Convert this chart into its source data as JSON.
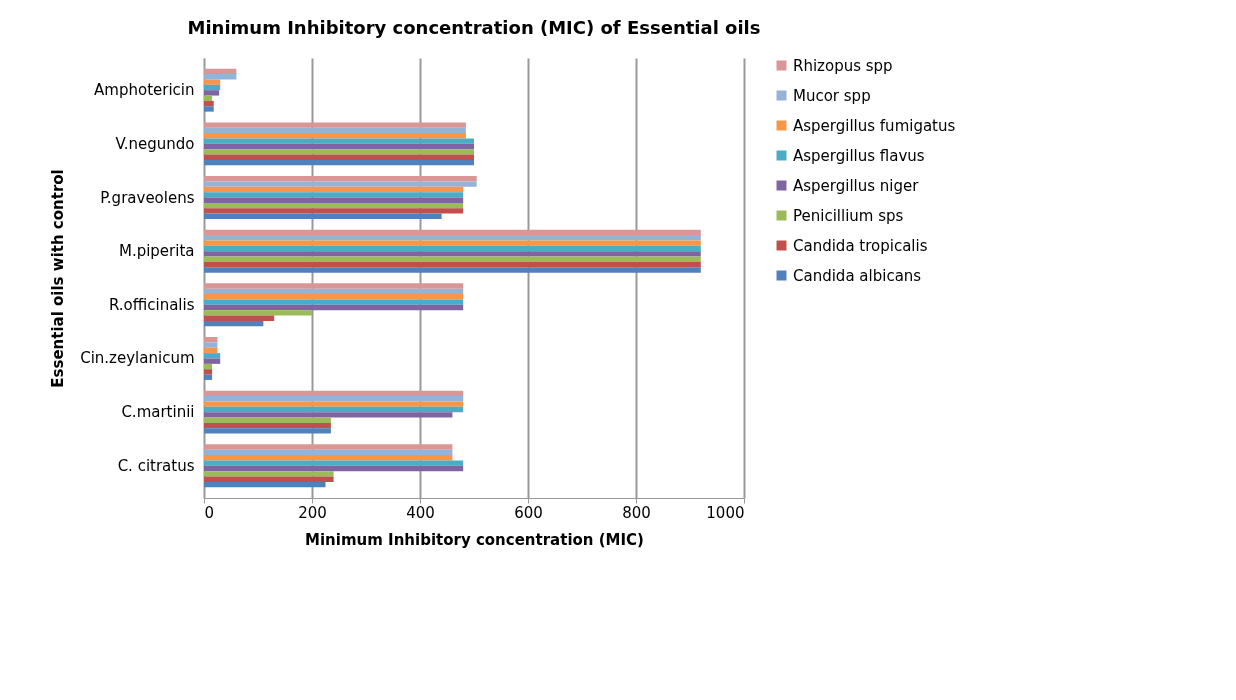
{
  "chart_data": {
    "type": "bar",
    "orientation": "horizontal",
    "title": "Minimum Inhibitory concentration (MIC) of Essential oils",
    "xlabel": "Minimum Inhibitory concentration (MIC)",
    "ylabel": "Essential oils with control",
    "categories": [
      "Amphotericin",
      "V.negundo",
      "P.graveolens",
      "M.piperita",
      "R.officinalis",
      "Cin.zeylanicum",
      "C.martinii",
      "C. citratus"
    ],
    "series": [
      {
        "name": "Rhizopus spp",
        "color": "#d99694",
        "values": [
          60,
          485,
          505,
          920,
          480,
          25,
          480,
          460
        ]
      },
      {
        "name": "Mucor spp",
        "color": "#95b3d7",
        "values": [
          60,
          485,
          505,
          920,
          480,
          25,
          480,
          460
        ]
      },
      {
        "name": "Aspergillus fumigatus",
        "color": "#f79646",
        "values": [
          30,
          485,
          480,
          920,
          480,
          25,
          480,
          460
        ]
      },
      {
        "name": "Aspergillus flavus",
        "color": "#4bacc6",
        "values": [
          30,
          500,
          480,
          920,
          480,
          30,
          480,
          480
        ]
      },
      {
        "name": "Aspergillus niger",
        "color": "#8064a2",
        "values": [
          28,
          500,
          480,
          920,
          480,
          30,
          460,
          480
        ]
      },
      {
        "name": "Penicillium sps",
        "color": "#9bbb59",
        "values": [
          15,
          500,
          480,
          920,
          200,
          15,
          235,
          240
        ]
      },
      {
        "name": "Candida tropicalis",
        "color": "#c0504d",
        "values": [
          18,
          500,
          480,
          920,
          130,
          15,
          235,
          240
        ]
      },
      {
        "name": "Candida albicans",
        "color": "#4f81bd",
        "values": [
          18,
          500,
          440,
          920,
          110,
          15,
          235,
          225
        ]
      }
    ],
    "xlim": [
      0,
      1000
    ],
    "xticks": [
      0,
      200,
      400,
      600,
      800,
      1000
    ],
    "grid": "x",
    "legend": "right"
  }
}
